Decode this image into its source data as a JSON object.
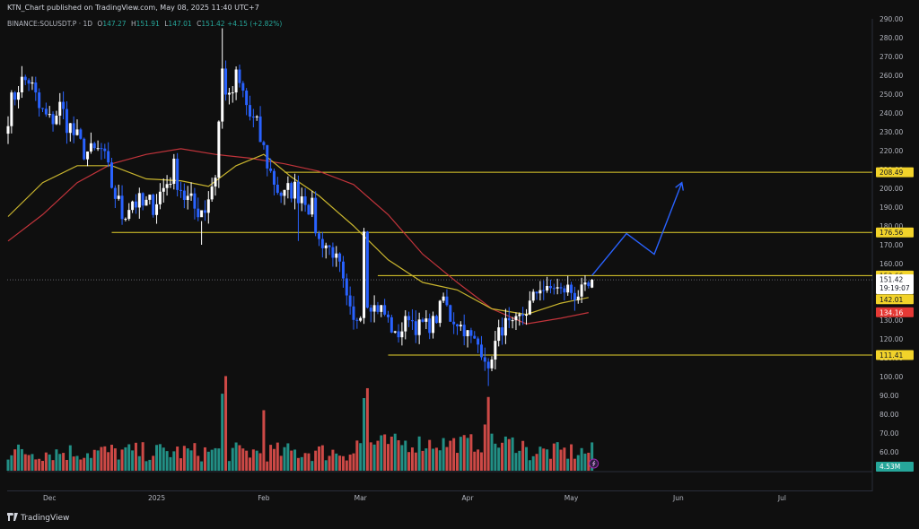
{
  "header": {
    "publish_line": "KTN_Chart published on TradingView.com, May 08, 2025 11:40 UTC+7",
    "symbol": "BINANCE:SOLUSDT.P · 1D",
    "open_label": "O",
    "open": "147.27",
    "high_label": "H",
    "high": "151.91",
    "low_label": "L",
    "low": "147.01",
    "close_label": "C",
    "close": "151.42",
    "change": "+4.15 (+2.82%)"
  },
  "footer": {
    "brand": "TradingView"
  },
  "colors": {
    "background": "#0f0f0f",
    "up": "#ffffff",
    "down": "#2962ff",
    "volume_up": "#26a69a",
    "volume_down": "#ef5350",
    "ma_fast": "#c9b52e",
    "ma_slow": "#c2343b",
    "level_line": "#e6d12c",
    "projection": "#2962ff"
  },
  "chart_data": {
    "type": "candlestick",
    "y_axis": {
      "min": 50,
      "max": 290,
      "step": 10,
      "ticks": [
        "290.00",
        "280.00",
        "270.00",
        "260.00",
        "250.00",
        "240.00",
        "230.00",
        "220.00",
        "210.00",
        "200.00",
        "190.00",
        "180.00",
        "170.00",
        "160.00",
        "150.00",
        "140.00",
        "130.00",
        "120.00",
        "110.00",
        "100.00",
        "90.00",
        "80.00",
        "70.00",
        "60.00"
      ]
    },
    "x_axis": {
      "labels": [
        {
          "label": "Dec",
          "day": 12
        },
        {
          "label": "2025",
          "day": 43
        },
        {
          "label": "Feb",
          "day": 74
        },
        {
          "label": "Mar",
          "day": 102
        },
        {
          "label": "Apr",
          "day": 133
        },
        {
          "label": "May",
          "day": 163
        },
        {
          "label": "Jun",
          "day": 194
        },
        {
          "label": "Jul",
          "day": 224
        }
      ],
      "first_day": "2024-11-20",
      "last_day_shown": "2025-07-13"
    },
    "price_badges": [
      {
        "value": "208.49",
        "price": 208.49,
        "kind": "level"
      },
      {
        "value": "176.56",
        "price": 176.56,
        "kind": "level"
      },
      {
        "value": "153.66",
        "price": 153.66,
        "kind": "level"
      },
      {
        "value": "151.42",
        "price": 151.42,
        "kind": "last",
        "countdown": "19:19:07"
      },
      {
        "value": "142.01",
        "price": 142.01,
        "kind": "ma_fast"
      },
      {
        "value": "134.16",
        "price": 134.16,
        "kind": "ma_slow"
      },
      {
        "value": "111.41",
        "price": 111.41,
        "kind": "level"
      }
    ],
    "volume_badge": "4.53M",
    "horizontal_levels": [
      {
        "price": 208.49,
        "from_day": 80,
        "to_day": "edge"
      },
      {
        "price": 176.56,
        "from_day": 30,
        "to_day": "edge"
      },
      {
        "price": 153.66,
        "from_day": 107,
        "to_day": "edge"
      },
      {
        "price": 111.41,
        "from_day": 110,
        "to_day": "edge"
      }
    ],
    "projection": [
      {
        "day": 169,
        "price": 153.66
      },
      {
        "day": 179,
        "price": 176
      },
      {
        "day": 187,
        "price": 165
      },
      {
        "day": 195,
        "price": 203
      }
    ],
    "ma_fast": [
      {
        "day": 0,
        "value": 185
      },
      {
        "day": 10,
        "value": 203
      },
      {
        "day": 20,
        "value": 212
      },
      {
        "day": 30,
        "value": 212
      },
      {
        "day": 40,
        "value": 205
      },
      {
        "day": 50,
        "value": 204
      },
      {
        "day": 58,
        "value": 201
      },
      {
        "day": 66,
        "value": 212
      },
      {
        "day": 74,
        "value": 218
      },
      {
        "day": 82,
        "value": 206
      },
      {
        "day": 90,
        "value": 196
      },
      {
        "day": 100,
        "value": 180
      },
      {
        "day": 110,
        "value": 162
      },
      {
        "day": 120,
        "value": 150
      },
      {
        "day": 130,
        "value": 146
      },
      {
        "day": 140,
        "value": 136
      },
      {
        "day": 150,
        "value": 133
      },
      {
        "day": 160,
        "value": 139
      },
      {
        "day": 168,
        "value": 142
      }
    ],
    "ma_slow": [
      {
        "day": 0,
        "value": 172
      },
      {
        "day": 10,
        "value": 186
      },
      {
        "day": 20,
        "value": 203
      },
      {
        "day": 30,
        "value": 213
      },
      {
        "day": 40,
        "value": 218
      },
      {
        "day": 50,
        "value": 221
      },
      {
        "day": 60,
        "value": 218
      },
      {
        "day": 70,
        "value": 216
      },
      {
        "day": 80,
        "value": 213
      },
      {
        "day": 90,
        "value": 209
      },
      {
        "day": 100,
        "value": 202
      },
      {
        "day": 110,
        "value": 186
      },
      {
        "day": 120,
        "value": 165
      },
      {
        "day": 130,
        "value": 150
      },
      {
        "day": 140,
        "value": 136
      },
      {
        "day": 150,
        "value": 128
      },
      {
        "day": 160,
        "value": 131
      },
      {
        "day": 168,
        "value": 134
      }
    ],
    "close_path": [
      [
        0,
        240
      ],
      [
        3,
        255
      ],
      [
        6,
        258
      ],
      [
        9,
        242
      ],
      [
        12,
        235
      ],
      [
        15,
        243
      ],
      [
        18,
        232
      ],
      [
        21,
        222
      ],
      [
        24,
        218
      ],
      [
        27,
        220
      ],
      [
        30,
        202
      ],
      [
        33,
        186
      ],
      [
        36,
        194
      ],
      [
        39,
        190
      ],
      [
        42,
        192
      ],
      [
        45,
        200
      ],
      [
        48,
        210
      ],
      [
        51,
        196
      ],
      [
        54,
        189
      ],
      [
        57,
        190
      ],
      [
        60,
        208
      ],
      [
        62,
        262
      ],
      [
        64,
        245
      ],
      [
        66,
        258
      ],
      [
        68,
        250
      ],
      [
        70,
        238
      ],
      [
        72,
        232
      ],
      [
        74,
        220
      ],
      [
        76,
        208
      ],
      [
        78,
        200
      ],
      [
        80,
        195
      ],
      [
        82,
        200
      ],
      [
        84,
        198
      ],
      [
        86,
        196
      ],
      [
        88,
        188
      ],
      [
        90,
        172
      ],
      [
        92,
        170
      ],
      [
        94,
        166
      ],
      [
        96,
        158
      ],
      [
        98,
        140
      ],
      [
        100,
        128
      ],
      [
        102,
        135
      ],
      [
        103,
        179
      ],
      [
        104,
        140
      ],
      [
        106,
        137
      ],
      [
        108,
        136
      ],
      [
        110,
        130
      ],
      [
        112,
        121
      ],
      [
        114,
        125
      ],
      [
        116,
        133
      ],
      [
        118,
        126
      ],
      [
        120,
        128
      ],
      [
        122,
        127
      ],
      [
        124,
        131
      ],
      [
        126,
        142
      ],
      [
        128,
        131
      ],
      [
        130,
        129
      ],
      [
        132,
        125
      ],
      [
        134,
        120
      ],
      [
        136,
        117
      ],
      [
        138,
        111
      ],
      [
        139,
        101
      ],
      [
        140,
        112
      ],
      [
        142,
        123
      ],
      [
        144,
        128
      ],
      [
        146,
        126
      ],
      [
        148,
        131
      ],
      [
        150,
        135
      ],
      [
        152,
        142
      ],
      [
        154,
        148
      ],
      [
        156,
        145
      ],
      [
        158,
        148
      ],
      [
        160,
        145
      ],
      [
        162,
        147
      ],
      [
        164,
        143
      ],
      [
        166,
        145
      ],
      [
        168,
        147
      ],
      [
        169,
        151.42
      ]
    ],
    "volume_scale_max": 110,
    "volume_spikes": [
      {
        "day": 62,
        "value": 70
      },
      {
        "day": 63,
        "value": 86
      },
      {
        "day": 74,
        "value": 55
      },
      {
        "day": 103,
        "value": 66
      },
      {
        "day": 104,
        "value": 75
      },
      {
        "day": 139,
        "value": 67
      },
      {
        "day": 138,
        "value": 42
      }
    ]
  }
}
